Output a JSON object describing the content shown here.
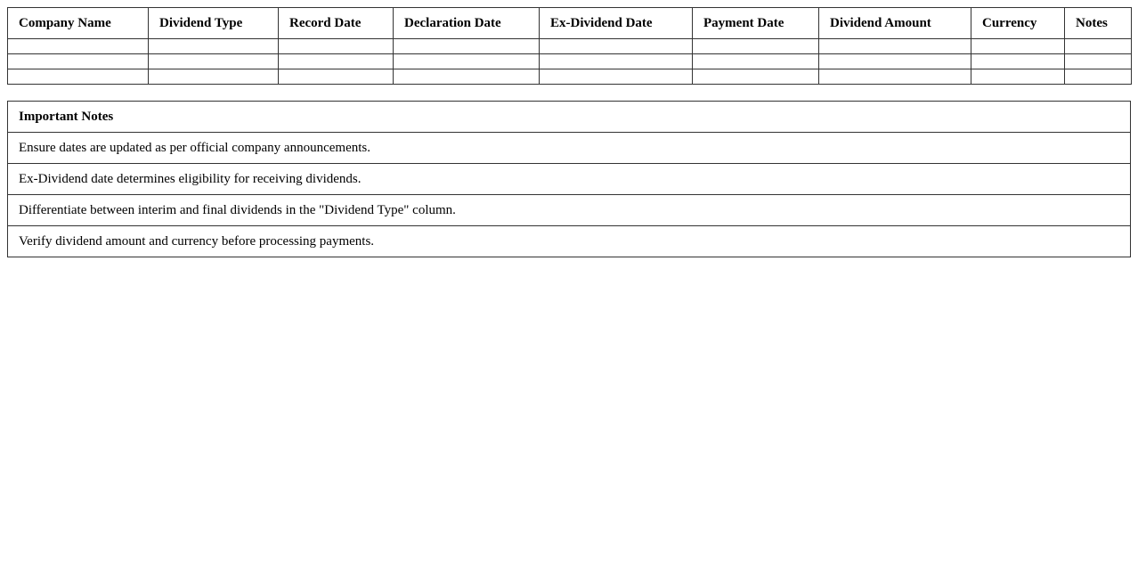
{
  "dividend_table": {
    "columns": [
      "Company Name",
      "Dividend Type",
      "Record Date",
      "Declaration Date",
      "Ex-Dividend Date",
      "Payment Date",
      "Dividend Amount",
      "Currency",
      "Notes"
    ],
    "rows": [
      [
        "",
        "",
        "",
        "",
        "",
        "",
        "",
        "",
        ""
      ],
      [
        "",
        "",
        "",
        "",
        "",
        "",
        "",
        "",
        ""
      ],
      [
        "",
        "",
        "",
        "",
        "",
        "",
        "",
        "",
        ""
      ]
    ]
  },
  "notes_table": {
    "title": "Important Notes",
    "items": [
      "Ensure dates are updated as per official company announcements.",
      "Ex-Dividend date determines eligibility for receiving dividends.",
      "Differentiate between interim and final dividends in the \"Dividend Type\" column.",
      "Verify dividend amount and currency before processing payments."
    ]
  }
}
